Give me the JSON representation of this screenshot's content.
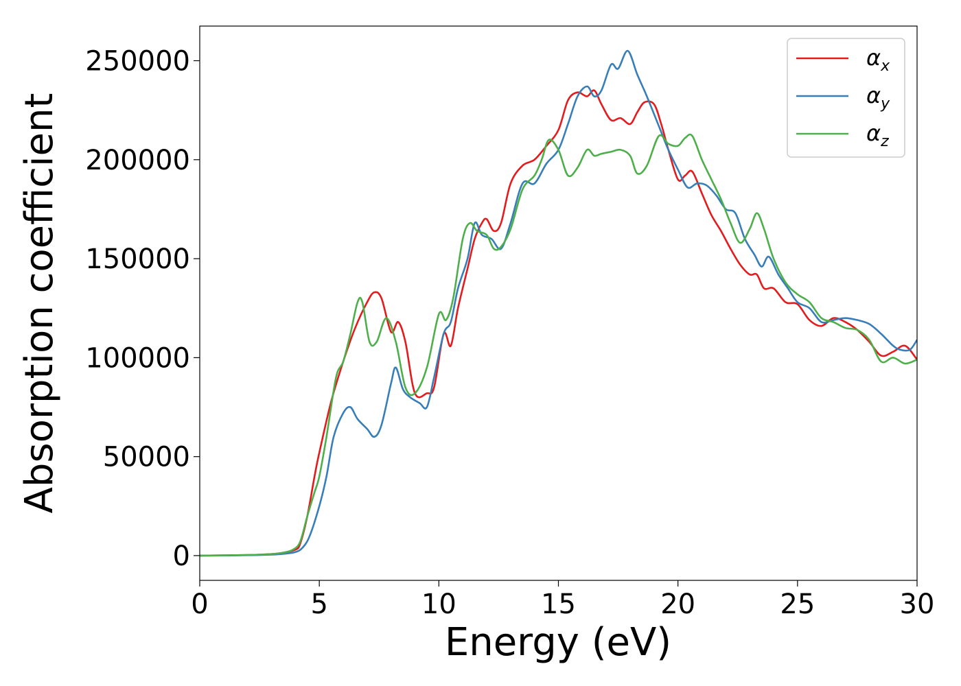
{
  "chart_data": {
    "type": "line",
    "title": "",
    "xlabel": "Energy (eV)",
    "ylabel": "Absorption coefficient",
    "xlim": [
      0,
      30
    ],
    "ylim": [
      -12500,
      267500
    ],
    "xticks": [
      0,
      5,
      10,
      15,
      20,
      25,
      30
    ],
    "yticks": [
      0,
      50000,
      100000,
      150000,
      200000,
      250000
    ],
    "grid": false,
    "legend_position": "top-right",
    "series": [
      {
        "name": "αx",
        "legend_base": "α",
        "legend_sub": "x",
        "color": "#e41a1c",
        "x": [
          0,
          2,
          3,
          3.5,
          4,
          4.2,
          4.5,
          4.8,
          5,
          5.5,
          6,
          6.5,
          7,
          7.3,
          7.6,
          8,
          8.3,
          8.6,
          9,
          9.5,
          9.8,
          10.2,
          10.5,
          10.8,
          11.2,
          11.5,
          11.8,
          12,
          12.3,
          12.6,
          13,
          13.5,
          14,
          14.5,
          15,
          15.4,
          15.8,
          16.2,
          16.5,
          16.8,
          17.2,
          17.6,
          18,
          18.3,
          18.6,
          19,
          19.3,
          19.6,
          20,
          20.3,
          20.6,
          21,
          21.4,
          21.8,
          22.2,
          22.6,
          23,
          23.3,
          23.6,
          24,
          24.5,
          25,
          25.5,
          26,
          26.5,
          27,
          27.5,
          28,
          28.5,
          29,
          29.5,
          30
        ],
        "y": [
          0,
          300,
          800,
          1500,
          3000,
          6000,
          20000,
          40000,
          52000,
          78000,
          98000,
          115000,
          128000,
          133000,
          130000,
          113000,
          118000,
          108000,
          82000,
          82000,
          85000,
          112000,
          106000,
          125000,
          145000,
          160000,
          168000,
          170000,
          164000,
          168000,
          188000,
          197000,
          200000,
          207000,
          215000,
          230000,
          234000,
          232000,
          235000,
          228000,
          220000,
          221000,
          218000,
          224000,
          229000,
          228000,
          218000,
          205000,
          190000,
          192000,
          194000,
          183000,
          172000,
          164000,
          155000,
          147000,
          142000,
          142000,
          135000,
          135000,
          128000,
          127000,
          119000,
          116000,
          120000,
          118000,
          114000,
          108000,
          101000,
          103000,
          106000,
          99000
        ]
      },
      {
        "name": "αy",
        "legend_base": "α",
        "legend_sub": "y",
        "color": "#377eb8",
        "x": [
          0,
          2,
          3,
          3.5,
          4,
          4.3,
          4.6,
          5,
          5.3,
          5.6,
          6,
          6.3,
          6.6,
          7,
          7.3,
          7.6,
          8,
          8.2,
          8.5,
          8.8,
          9.2,
          9.5,
          9.8,
          10.2,
          10.5,
          10.8,
          11.2,
          11.5,
          11.8,
          12.2,
          12.6,
          13,
          13.5,
          14,
          14.5,
          15,
          15.4,
          15.8,
          16.2,
          16.5,
          16.8,
          17.2,
          17.5,
          17.9,
          18.3,
          18.7,
          19.2,
          19.6,
          20,
          20.4,
          20.8,
          21.2,
          21.6,
          22,
          22.4,
          22.8,
          23.2,
          23.5,
          23.8,
          24.2,
          24.6,
          25,
          25.5,
          26,
          26.5,
          27,
          27.5,
          28,
          28.5,
          29,
          29.3,
          29.7,
          30
        ],
        "y": [
          0,
          200,
          500,
          900,
          1800,
          4000,
          10000,
          25000,
          40000,
          60000,
          72000,
          75000,
          69000,
          64000,
          60000,
          66000,
          87000,
          95000,
          84000,
          80000,
          77000,
          75000,
          90000,
          112000,
          118000,
          135000,
          150000,
          168000,
          162000,
          160000,
          155000,
          168000,
          188000,
          188000,
          198000,
          205000,
          218000,
          232000,
          237000,
          232000,
          235000,
          248000,
          246000,
          255000,
          243000,
          232000,
          217000,
          205000,
          195000,
          186000,
          188000,
          187000,
          182000,
          175000,
          173000,
          160000,
          152000,
          146000,
          151000,
          142000,
          135000,
          128000,
          125000,
          118000,
          119000,
          120000,
          119000,
          117000,
          112000,
          106000,
          104000,
          104000,
          109000
        ]
      },
      {
        "name": "αz",
        "legend_base": "α",
        "legend_sub": "z",
        "color": "#4daf4a",
        "x": [
          0,
          2,
          3,
          3.5,
          3.9,
          4.2,
          4.5,
          4.8,
          5,
          5.3,
          5.7,
          6,
          6.3,
          6.6,
          6.8,
          7.1,
          7.4,
          7.8,
          8.2,
          8.6,
          9,
          9.5,
          10,
          10.3,
          10.6,
          11,
          11.3,
          11.6,
          12,
          12.3,
          12.6,
          13,
          13.5,
          14,
          14.3,
          14.6,
          15,
          15.4,
          15.8,
          16.2,
          16.5,
          16.8,
          17.2,
          17.6,
          18,
          18.3,
          18.7,
          19.2,
          19.6,
          20,
          20.3,
          20.6,
          21,
          21.4,
          21.8,
          22.2,
          22.6,
          23,
          23.3,
          23.6,
          24,
          24.5,
          25,
          25.5,
          26,
          26.5,
          27,
          27.5,
          28,
          28.5,
          29,
          29.5,
          30
        ],
        "y": [
          0,
          300,
          800,
          1500,
          3000,
          7000,
          20000,
          32000,
          40000,
          60000,
          90000,
          98000,
          112000,
          128000,
          128000,
          108000,
          108000,
          120000,
          108000,
          85000,
          82000,
          95000,
          122000,
          119000,
          130000,
          160000,
          168000,
          164000,
          162000,
          155000,
          156000,
          165000,
          185000,
          192000,
          200000,
          210000,
          205000,
          192000,
          196000,
          205000,
          202000,
          203000,
          204000,
          205000,
          202000,
          193000,
          197000,
          212000,
          208000,
          207000,
          211000,
          212000,
          200000,
          190000,
          180000,
          168000,
          158000,
          165000,
          173000,
          165000,
          150000,
          138000,
          132000,
          128000,
          120000,
          118000,
          115000,
          114000,
          109000,
          98000,
          100000,
          97000,
          99000
        ]
      }
    ]
  }
}
